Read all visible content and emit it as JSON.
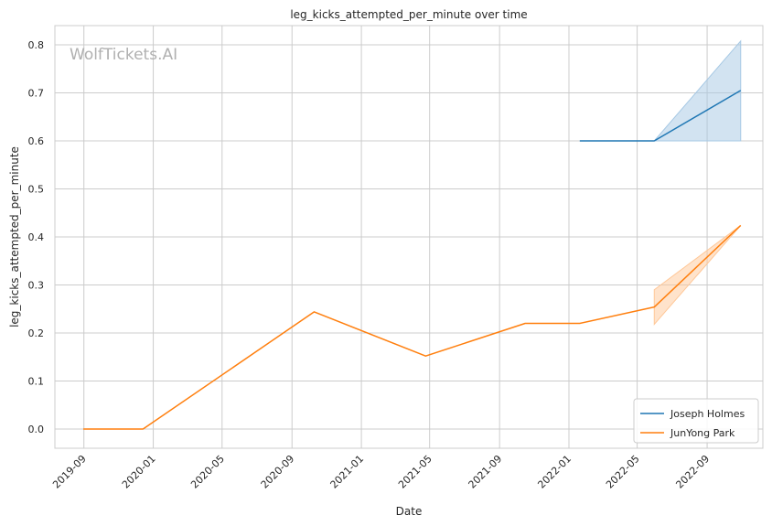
{
  "chart_data": {
    "type": "line",
    "title": "leg_kicks_attempted_per_minute over time",
    "xlabel": "Date",
    "ylabel": "leg_kicks_attempted_per_minute",
    "watermark": "WolfTickets.AI",
    "x_ticks": [
      "2019-09",
      "2020-01",
      "2020-05",
      "2020-09",
      "2021-01",
      "2021-05",
      "2021-09",
      "2022-01",
      "2022-05",
      "2022-09"
    ],
    "y_ticks": [
      "0.0",
      "0.1",
      "0.2",
      "0.3",
      "0.4",
      "0.5",
      "0.6",
      "0.7",
      "0.8"
    ],
    "xlim": [
      "2019-07-12",
      "2022-12-08"
    ],
    "ylim": [
      -0.04,
      0.84
    ],
    "grid": true,
    "legend_position": "lower-right",
    "series": [
      {
        "name": "Joseph Holmes",
        "color": "#1f77b4",
        "band_color": "#a6c8e4",
        "x": [
          "2022-01-20",
          "2022-05-31",
          "2022-10-30"
        ],
        "y": [
          0.6,
          0.6,
          0.705
        ],
        "band_x": [
          "2022-05-31",
          "2022-10-30"
        ],
        "band_low": [
          0.6,
          0.6
        ],
        "band_high": [
          0.6,
          0.808
        ]
      },
      {
        "name": "JunYong Park",
        "color": "#ff7f0e",
        "band_color": "#ffc797",
        "x": [
          "2019-08-31",
          "2019-12-14",
          "2020-10-10",
          "2021-04-24",
          "2021-10-16",
          "2022-01-20",
          "2022-05-31",
          "2022-10-30"
        ],
        "y": [
          0.0,
          0.0,
          0.244,
          0.152,
          0.22,
          0.22,
          0.254,
          0.424
        ],
        "band_x": [
          "2022-05-31",
          "2022-10-30"
        ],
        "band_low": [
          0.218,
          0.424
        ],
        "band_high": [
          0.29,
          0.424
        ]
      }
    ]
  }
}
